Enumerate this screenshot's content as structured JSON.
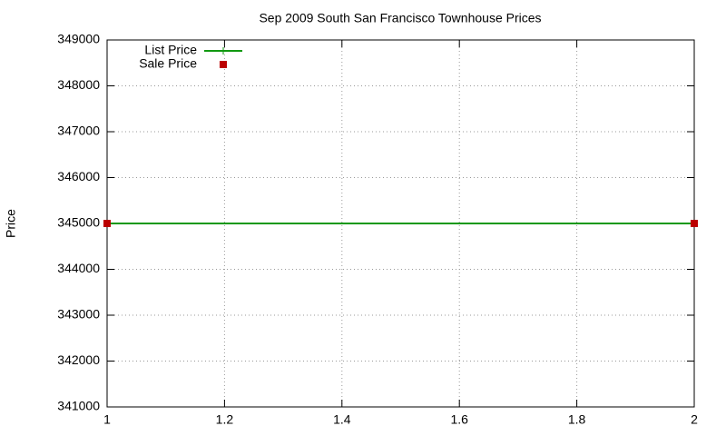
{
  "chart_data": {
    "type": "line",
    "title": "Sep 2009 South San Francisco Townhouse Prices",
    "y_label": "Price",
    "x": [
      1,
      2
    ],
    "series": [
      {
        "name": "List Price",
        "color": "#119911",
        "mode": "lines",
        "values": [
          345000,
          345000
        ]
      },
      {
        "name": "Sale Price",
        "color": "#bb0000",
        "mode": "points",
        "values": [
          345000,
          345000
        ]
      }
    ],
    "xlim": [
      1,
      2
    ],
    "xticks": [
      1,
      1.2,
      1.4,
      1.6,
      1.8,
      2
    ],
    "ylim": [
      341000,
      349000
    ],
    "yticks": [
      341000,
      342000,
      343000,
      344000,
      345000,
      346000,
      347000,
      348000,
      349000
    ],
    "grid": true,
    "legend": "top-left"
  }
}
